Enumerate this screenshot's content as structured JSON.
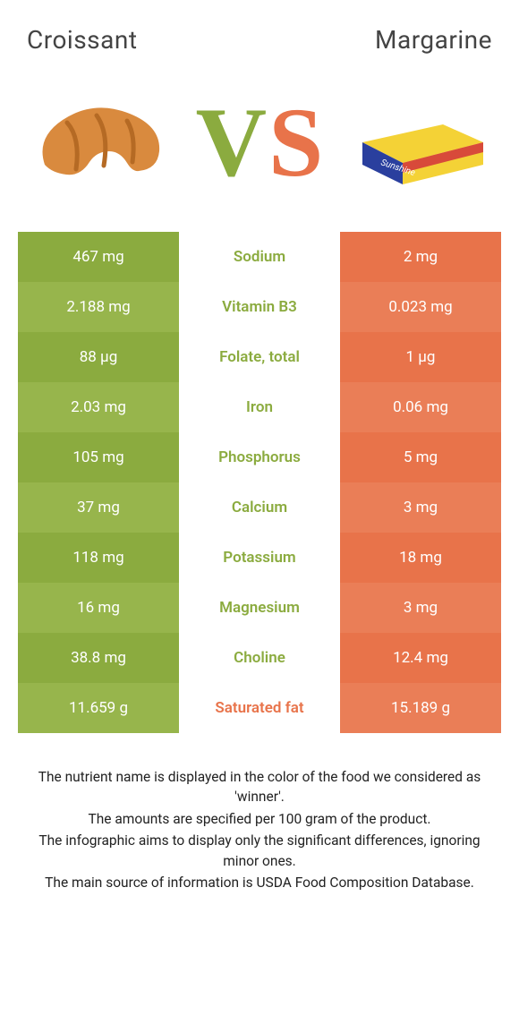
{
  "title_left": "Croissant",
  "title_right": "Margarine",
  "vs": {
    "v": "V",
    "s": "S"
  },
  "colors": {
    "green": "#8bab3f",
    "green_alt": "#97b54c",
    "orange": "#e8734a",
    "orange_alt": "#ea7e57",
    "vs_v": "#8bab3f",
    "vs_s": "#e8734a",
    "croissant_fill": "#d98a3e",
    "croissant_dark": "#b56a24",
    "marg_box": "#f4d236",
    "marg_wrap": "#2a3f9e",
    "marg_wrap2": "#d84a3a"
  },
  "rows": [
    {
      "left": "467 mg",
      "label": "Sodium",
      "right": "2 mg",
      "winner": "left"
    },
    {
      "left": "2.188 mg",
      "label": "Vitamin B3",
      "right": "0.023 mg",
      "winner": "left"
    },
    {
      "left": "88 µg",
      "label": "Folate, total",
      "right": "1 µg",
      "winner": "left"
    },
    {
      "left": "2.03 mg",
      "label": "Iron",
      "right": "0.06 mg",
      "winner": "left"
    },
    {
      "left": "105 mg",
      "label": "Phosphorus",
      "right": "5 mg",
      "winner": "left"
    },
    {
      "left": "37 mg",
      "label": "Calcium",
      "right": "3 mg",
      "winner": "left"
    },
    {
      "left": "118 mg",
      "label": "Potassium",
      "right": "18 mg",
      "winner": "left"
    },
    {
      "left": "16 mg",
      "label": "Magnesium",
      "right": "3 mg",
      "winner": "left"
    },
    {
      "left": "38.8 mg",
      "label": "Choline",
      "right": "12.4 mg",
      "winner": "left"
    },
    {
      "left": "11.659 g",
      "label": "Saturated fat",
      "right": "15.189 g",
      "winner": "right"
    }
  ],
  "footnotes": [
    "The nutrient name is displayed in the color of the food we considered as 'winner'.",
    "The amounts are specified per 100 gram of the product.",
    "The infographic aims to display only the significant differences, ignoring minor ones.",
    "The main source of information is USDA Food Composition Database."
  ]
}
